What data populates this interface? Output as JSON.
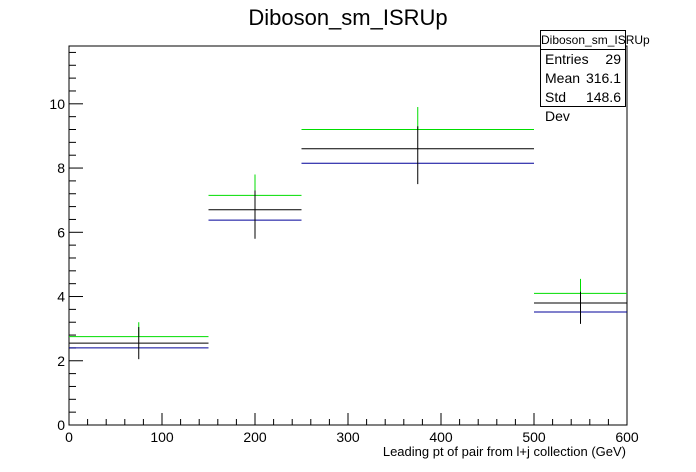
{
  "chart_data": {
    "type": "histogram",
    "title": "Diboson_sm_ISRUp",
    "xlabel": "Leading pt of pair from l+j collection (GeV)",
    "ylabel": "",
    "xlim": [
      0,
      600
    ],
    "ylim": [
      0,
      11.8
    ],
    "x_ticks": [
      0,
      100,
      200,
      300,
      400,
      500,
      600
    ],
    "y_ticks": [
      0,
      2,
      4,
      6,
      8,
      10
    ],
    "bins": [
      {
        "low": 0,
        "high": 150,
        "center": 75,
        "value": 2.55,
        "err_low": 2.05,
        "err_high": 3.05,
        "up": 2.75,
        "up_err_high": 3.2,
        "down": 2.4
      },
      {
        "low": 150,
        "high": 250,
        "center": 200,
        "value": 6.7,
        "err_low": 5.8,
        "err_high": 7.3,
        "up": 7.15,
        "up_err_high": 7.8,
        "down": 6.38
      },
      {
        "low": 250,
        "high": 500,
        "center": 375,
        "value": 8.6,
        "err_low": 7.5,
        "err_high": 9.3,
        "up": 9.2,
        "up_err_high": 9.9,
        "down": 8.15
      },
      {
        "low": 500,
        "high": 600,
        "center": 550,
        "value": 3.8,
        "err_low": 3.15,
        "err_high": 4.15,
        "up": 4.1,
        "up_err_high": 4.55,
        "down": 3.52
      }
    ],
    "colors": {
      "nominal": "#000000",
      "up": "#00dd00",
      "down": "#000099"
    },
    "stats": {
      "title": "Diboson_sm_ISRUp",
      "rows": [
        {
          "label": "Entries",
          "value": "29"
        },
        {
          "label": "Mean",
          "value": "316.1"
        },
        {
          "label": "Std Dev",
          "value": "148.6"
        }
      ]
    }
  }
}
